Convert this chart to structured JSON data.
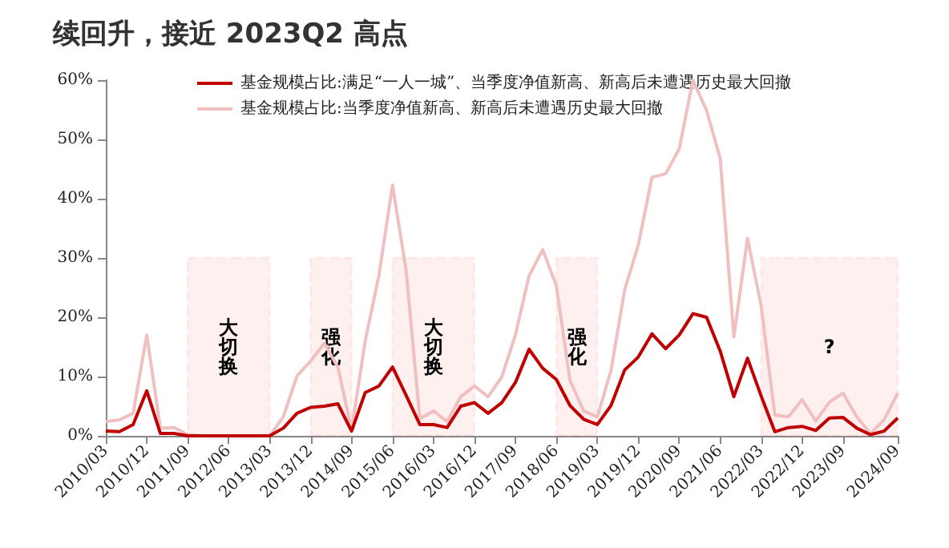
{
  "chart_data": {
    "type": "line",
    "title": "续回升，接近 2023Q2 高点",
    "categories": [
      "2010/03",
      null,
      null,
      "2010/12",
      null,
      null,
      "2011/09",
      null,
      null,
      "2012/06",
      null,
      null,
      "2013/03",
      null,
      null,
      "2013/12",
      null,
      null,
      "2014/09",
      null,
      null,
      "2015/06",
      null,
      null,
      "2016/03",
      null,
      null,
      "2016/12",
      null,
      null,
      "2017/09",
      null,
      null,
      "2018/06",
      null,
      null,
      "2019/03",
      null,
      null,
      "2019/12",
      null,
      null,
      "2020/09",
      null,
      null,
      "2021/06",
      null,
      null,
      "2022/03",
      null,
      null,
      "2022/12",
      null,
      null,
      "2023/09",
      null,
      null,
      null,
      "2024/09"
    ],
    "series": [
      {
        "name": "基金规模占比:满足“一人一城”、当季度净值新高、新高后未遭遇历史最大回撤",
        "color": "#c00000",
        "values": [
          0.8,
          0.7,
          1.9,
          7.6,
          0.4,
          0.4,
          0,
          0,
          0,
          0,
          0,
          0,
          0,
          1.3,
          3.8,
          4.8,
          5.0,
          5.4,
          0.8,
          7.3,
          8.4,
          11.6,
          6.8,
          1.9,
          1.9,
          1.4,
          5.0,
          5.6,
          3.8,
          5.6,
          9.0,
          14.6,
          11.4,
          9.5,
          5.1,
          2.8,
          1.9,
          5.1,
          11.1,
          13.3,
          17.2,
          14.7,
          17.0,
          20.6,
          20.0,
          14.3,
          6.6,
          13.1,
          6.7,
          0.7,
          1.4,
          1.6,
          0.9,
          3.0,
          3.1,
          1.3,
          0.2,
          0.8,
          3.0
        ]
      },
      {
        "name": "基金规模占比:当季度净值新高、新高后未遭遇历史最大回撤",
        "color": "#f0c0c0",
        "values": [
          2.4,
          2.7,
          3.8,
          17.0,
          1.3,
          1.4,
          0.2,
          0,
          0,
          0,
          0,
          0,
          0,
          3.2,
          10.1,
          12.6,
          15.6,
          11.6,
          1.0,
          16.0,
          27.0,
          42.3,
          27.8,
          2.9,
          4.2,
          2.4,
          6.6,
          8.4,
          6.6,
          9.9,
          17.0,
          27.0,
          31.4,
          25.3,
          9.3,
          4.2,
          3.2,
          11.0,
          24.6,
          32.2,
          43.6,
          44.2,
          48.4,
          60.0,
          54.9,
          46.8,
          16.7,
          33.3,
          21.9,
          3.5,
          3.2,
          6.1,
          2.5,
          5.7,
          7.2,
          3.2,
          0.4,
          2.7,
          7.2
        ]
      }
    ],
    "ylim": [
      0,
      60
    ],
    "yticks": [
      {
        "value": 0,
        "label": "0%"
      },
      {
        "value": 10,
        "label": "10%"
      },
      {
        "value": 20,
        "label": "20%"
      },
      {
        "value": 30,
        "label": "30%"
      },
      {
        "value": 40,
        "label": "40%"
      },
      {
        "value": 50,
        "label": "50%"
      },
      {
        "value": 60,
        "label": "60%"
      }
    ],
    "bands": [
      {
        "axis": "x",
        "from": "2011/09",
        "to": "2013/03",
        "label": "大切换",
        "color": "#ff0000"
      },
      {
        "axis": "x",
        "from": "2013/12",
        "to": "2014/09",
        "label": "强化",
        "color": "#ff0000"
      },
      {
        "axis": "x",
        "from": "2015/06",
        "to": "2016/12",
        "label": "大切换",
        "color": "#ff0000"
      },
      {
        "axis": "x",
        "from": "2018/06",
        "to": "2019/03",
        "label": "强化",
        "color": "#ff0000"
      },
      {
        "axis": "x",
        "from": "2022/03",
        "to": "2024/09",
        "label": "?",
        "color": "#ff0000"
      }
    ],
    "grid": false,
    "legend": "top left",
    "marker": "none",
    "line_style": "solid"
  }
}
